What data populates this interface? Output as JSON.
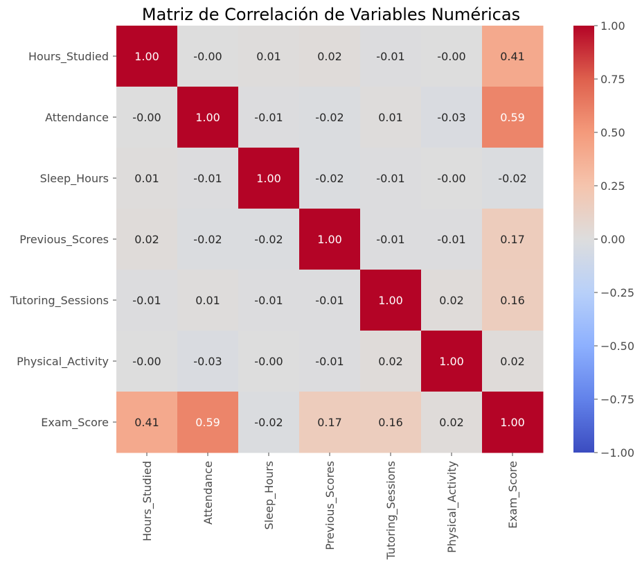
{
  "chart_data": {
    "type": "heatmap",
    "title": "Matriz de Correlación de Variables Numéricas",
    "rows": [
      "Hours_Studied",
      "Attendance",
      "Sleep_Hours",
      "Previous_Scores",
      "Tutoring_Sessions",
      "Physical_Activity",
      "Exam_Score"
    ],
    "columns": [
      "Hours_Studied",
      "Attendance",
      "Sleep_Hours",
      "Previous_Scores",
      "Tutoring_Sessions",
      "Physical_Activity",
      "Exam_Score"
    ],
    "values": [
      [
        1.0,
        -0.0,
        0.01,
        0.02,
        -0.01,
        -0.0,
        0.41
      ],
      [
        -0.0,
        1.0,
        -0.01,
        -0.02,
        0.01,
        -0.03,
        0.59
      ],
      [
        0.01,
        -0.01,
        1.0,
        -0.02,
        -0.01,
        -0.0,
        -0.02
      ],
      [
        0.02,
        -0.02,
        -0.02,
        1.0,
        -0.01,
        -0.01,
        0.17
      ],
      [
        -0.01,
        0.01,
        -0.01,
        -0.01,
        1.0,
        0.02,
        0.16
      ],
      [
        -0.0,
        -0.03,
        -0.0,
        -0.01,
        0.02,
        1.0,
        0.02
      ],
      [
        0.41,
        0.59,
        -0.02,
        0.17,
        0.16,
        0.02,
        1.0
      ]
    ],
    "labels": [
      [
        "1.00",
        "-0.00",
        "0.01",
        "0.02",
        "-0.01",
        "-0.00",
        "0.41"
      ],
      [
        "-0.00",
        "1.00",
        "-0.01",
        "-0.02",
        "0.01",
        "-0.03",
        "0.59"
      ],
      [
        "0.01",
        "-0.01",
        "1.00",
        "-0.02",
        "-0.01",
        "-0.00",
        "-0.02"
      ],
      [
        "0.02",
        "-0.02",
        "-0.02",
        "1.00",
        "-0.01",
        "-0.01",
        "0.17"
      ],
      [
        "-0.01",
        "0.01",
        "-0.01",
        "-0.01",
        "1.00",
        "0.02",
        "0.16"
      ],
      [
        "-0.00",
        "-0.03",
        "-0.00",
        "-0.01",
        "0.02",
        "1.00",
        "0.02"
      ],
      [
        "0.41",
        "0.59",
        "-0.02",
        "0.17",
        "0.16",
        "0.02",
        "1.00"
      ]
    ],
    "colormap": "coolwarm",
    "vmin": -1.0,
    "vmax": 1.0,
    "colorbar": {
      "ticks": [
        1.0,
        0.75,
        0.5,
        0.25,
        0.0,
        -0.25,
        -0.5,
        -0.75,
        -1.0
      ],
      "tick_labels": [
        "1.00",
        "0.75",
        "0.50",
        "0.25",
        "0.00",
        "−0.25",
        "−0.50",
        "−0.75",
        "−1.00"
      ]
    }
  }
}
